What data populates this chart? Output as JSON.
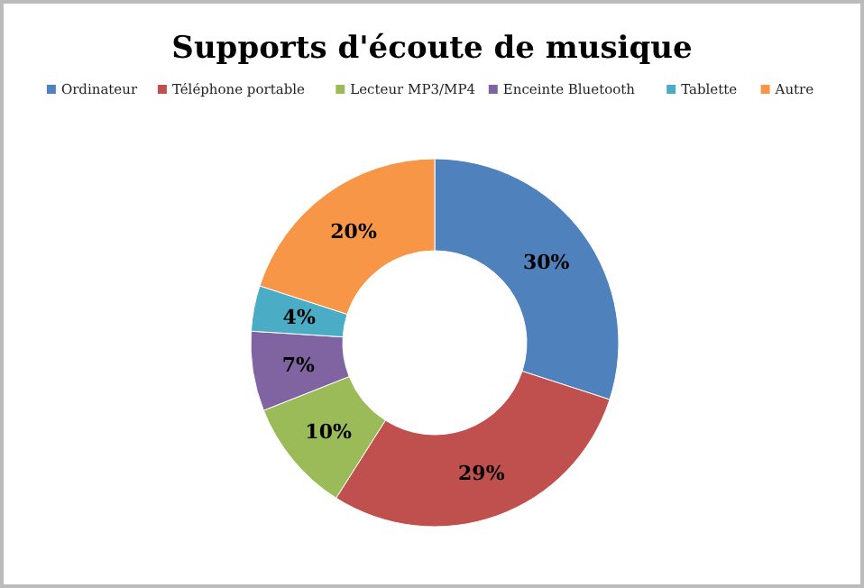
{
  "chart_data": {
    "type": "donut",
    "title": "Supports d'écoute de musique",
    "categories": [
      "Ordinateur",
      "Téléphone portable",
      "Lecteur MP3/MP4",
      "Enceinte Bluetooth",
      "Tablette",
      "Autre"
    ],
    "values": [
      30,
      29,
      10,
      7,
      4,
      20
    ],
    "value_labels": [
      "30%",
      "29%",
      "10%",
      "7%",
      "4%",
      "20%"
    ],
    "colors": [
      "#4f81bd",
      "#c0504d",
      "#9bbb59",
      "#8064a2",
      "#4bacc6",
      "#f79646"
    ],
    "legend": "top"
  }
}
